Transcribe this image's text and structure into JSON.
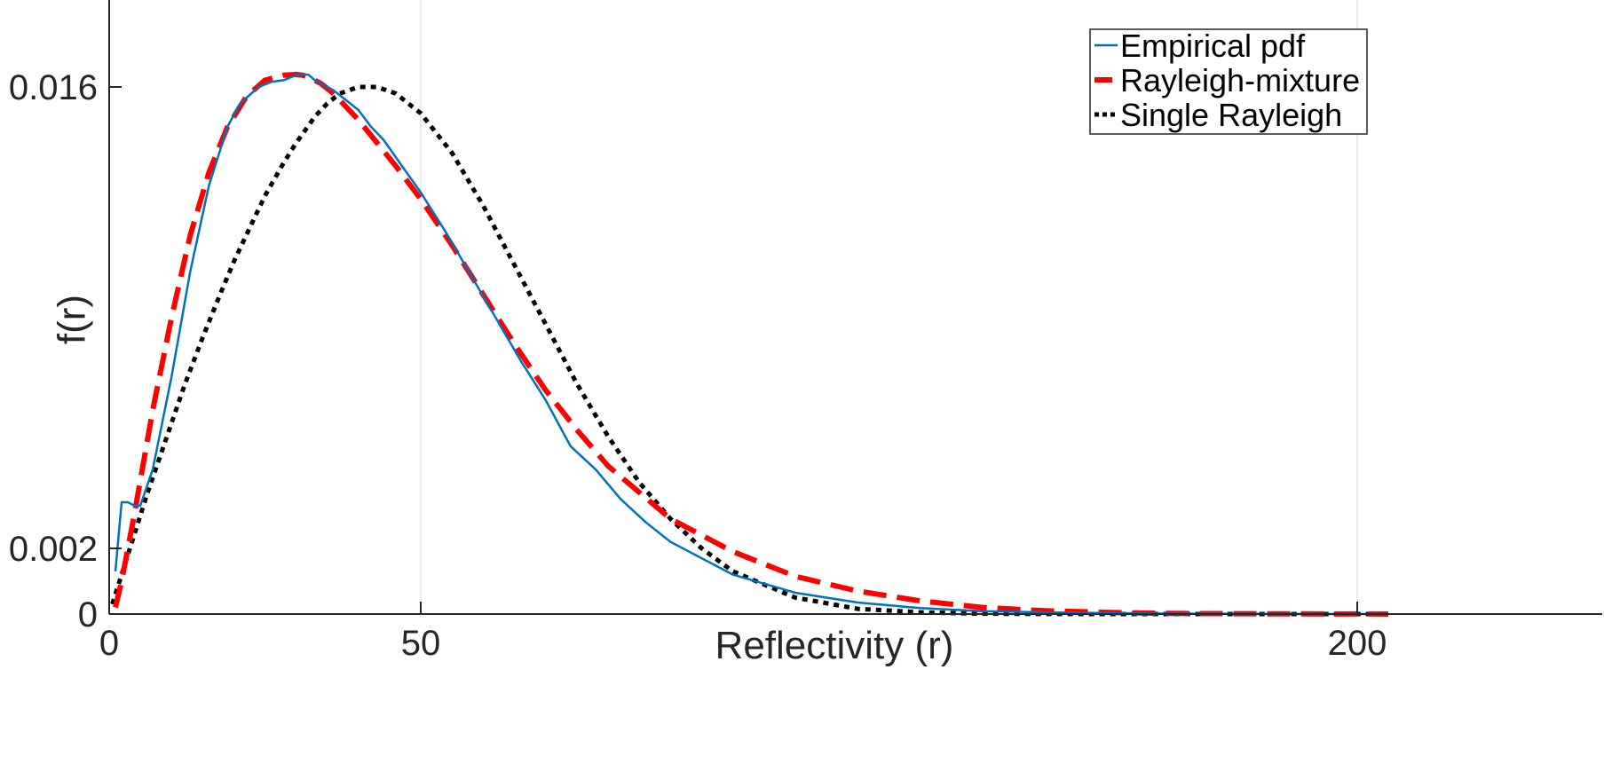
{
  "chart_data": {
    "type": "line",
    "title": "",
    "xlabel": "Reflectivity (r)",
    "ylabel": "f(r)",
    "xlim": [
      0,
      205
    ],
    "ylim": [
      0,
      0.0165
    ],
    "xticks": [
      0,
      50,
      200
    ],
    "xtick_labels": [
      "0",
      "50",
      "200"
    ],
    "yticks": [
      0,
      0.002,
      0.016
    ],
    "ytick_labels": [
      "0",
      "0.002",
      "0.016"
    ],
    "grid": "x only",
    "legend_position": "top-right",
    "colors": {
      "empirical": "#0072BD",
      "mixture": "#FF0000",
      "single": "#000000",
      "axis": "#262626",
      "grid": "#e6e6e6"
    },
    "series": [
      {
        "name": "Empirical pdf",
        "style": "solid",
        "x": [
          1,
          2,
          3,
          4,
          5,
          7,
          10,
          13,
          16,
          19,
          21,
          24,
          26,
          28,
          30,
          31,
          32,
          33,
          34,
          36,
          38,
          40,
          42,
          44,
          47,
          50,
          54,
          58,
          62,
          66,
          70,
          74,
          78,
          82,
          86,
          90,
          95,
          100,
          110,
          120,
          130,
          140,
          150,
          160,
          170,
          180,
          190,
          200,
          205
        ],
        "y": [
          0.0013,
          0.0034,
          0.0034,
          0.0033,
          0.0033,
          0.0044,
          0.0072,
          0.0104,
          0.013,
          0.0148,
          0.0155,
          0.016,
          0.01615,
          0.0162,
          0.01635,
          0.01637,
          0.01636,
          0.0162,
          0.0161,
          0.0159,
          0.0156,
          0.0153,
          0.0148,
          0.0144,
          0.0136,
          0.0128,
          0.0116,
          0.0103,
          0.009,
          0.0077,
          0.0065,
          0.0051,
          0.0044,
          0.0035,
          0.0028,
          0.0022,
          0.0017,
          0.0012,
          0.00065,
          0.00035,
          0.00018,
          9e-05,
          5e-05,
          3e-05,
          1e-05,
          5e-06,
          2e-06,
          1e-06,
          0.0
        ]
      },
      {
        "name": "Rayleigh-mixture",
        "style": "dashed",
        "x": [
          1,
          2,
          4,
          7,
          10,
          13,
          16,
          19,
          22,
          25,
          28,
          30,
          31,
          32,
          34,
          36,
          38,
          40,
          43,
          46,
          50,
          55,
          60,
          65,
          70,
          75,
          80,
          90,
          100,
          110,
          120,
          130,
          140,
          150,
          160,
          170,
          180,
          190,
          200,
          205
        ],
        "y": [
          0.0002,
          0.001,
          0.003,
          0.0062,
          0.009,
          0.0115,
          0.0134,
          0.0148,
          0.0157,
          0.0162,
          0.01635,
          0.01637,
          0.01635,
          0.0163,
          0.0161,
          0.0158,
          0.0154,
          0.015,
          0.0143,
          0.0136,
          0.0126,
          0.0112,
          0.0097,
          0.0082,
          0.0068,
          0.0056,
          0.0045,
          0.0029,
          0.0019,
          0.00115,
          0.0007,
          0.0004,
          0.0002,
          0.0001,
          5e-05,
          2e-05,
          1e-05,
          5e-06,
          2e-06,
          1e-06
        ]
      },
      {
        "name": "Single Rayleigh",
        "style": "dotted",
        "x": [
          0.5,
          2,
          4,
          6,
          8,
          10,
          12,
          15,
          18,
          20,
          22,
          25,
          28,
          30,
          33,
          35,
          37,
          40,
          43,
          46,
          50,
          55,
          60,
          65,
          70,
          75,
          80,
          85,
          90,
          95,
          100,
          110,
          120,
          130,
          140,
          150,
          160,
          170,
          180,
          190,
          200,
          205
        ],
        "y": [
          0.0003,
          0.0012,
          0.0024,
          0.0036,
          0.0047,
          0.0058,
          0.0069,
          0.0084,
          0.0098,
          0.0107,
          0.0115,
          0.0127,
          0.0137,
          0.0143,
          0.0151,
          0.0155,
          0.0158,
          0.016,
          0.016,
          0.0158,
          0.0152,
          0.014,
          0.0124,
          0.0106,
          0.0088,
          0.007,
          0.0054,
          0.004,
          0.0029,
          0.002,
          0.0013,
          0.0005,
          0.00016,
          5e-05,
          1e-05,
          3e-06,
          1e-06,
          0.0,
          0.0,
          0.0,
          0.0,
          0.0
        ]
      }
    ]
  }
}
